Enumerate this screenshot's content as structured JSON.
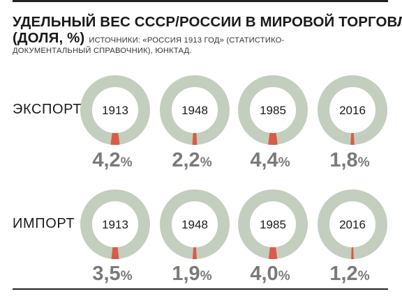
{
  "title": {
    "line1": "УДЕЛЬНЫЙ ВЕС СССР/РОССИИ В МИРОВОЙ ТОРГОВЛЕ",
    "line2": "(ДОЛЯ, %)",
    "source_part1": "ИСТОЧНИКИ: «РОССИЯ 1913 ГОД» (СТАТИСТИКО-",
    "source_part2": "ДОКУМЕНТАЛЬНЫЙ СПРАВОЧНИК), ЮНКТАД."
  },
  "colors": {
    "ring": "#c3cebe",
    "wedge": "#d95c4a",
    "value_text": "#7a7a7a"
  },
  "chart_data": {
    "type": "pie",
    "title": "УДЕЛЬНЫЙ ВЕС СССР/РОССИИ В МИРОВОЙ ТОРГОВЛЕ (ДОЛЯ, %)",
    "unit": "%",
    "categories": [
      "1913",
      "1948",
      "1985",
      "2016"
    ],
    "series": [
      {
        "name": "ЭКСПОРТ",
        "values": [
          4.2,
          2.2,
          4.4,
          1.8
        ],
        "labels": [
          "4,2",
          "2,2",
          "4,4",
          "1,8"
        ]
      },
      {
        "name": "ИМПОРТ",
        "values": [
          3.5,
          1.9,
          4.0,
          1.2
        ],
        "labels": [
          "3,5",
          "1,9",
          "4,0",
          "1,2"
        ]
      }
    ]
  }
}
